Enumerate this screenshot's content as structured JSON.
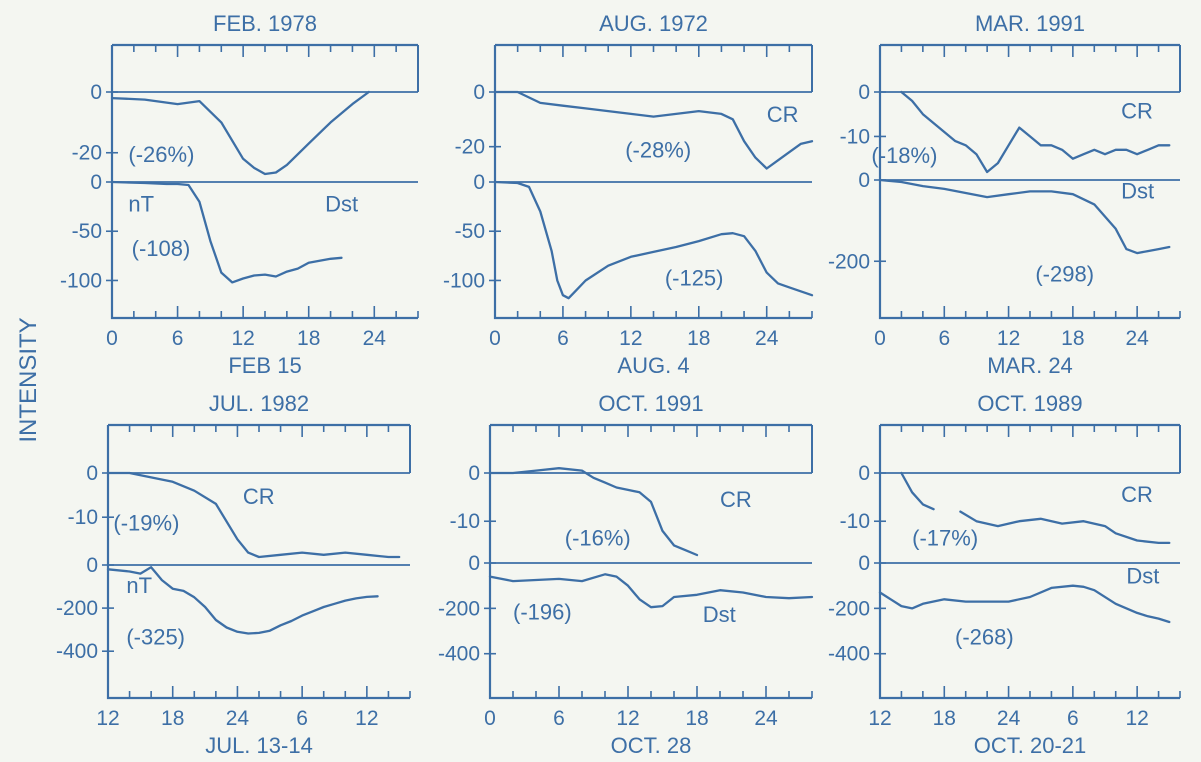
{
  "ylabel": "INTENSITY",
  "colors": {
    "ink": "#3d6fa6",
    "background": "#f4f6f1"
  },
  "chart_data": [
    {
      "type": "line",
      "title": "FEB. 1978",
      "xlabel": "FEB 15",
      "x_ticks": [
        "0",
        "6",
        "12",
        "18",
        "24"
      ],
      "x_tick_values": [
        0,
        6,
        12,
        18,
        24
      ],
      "xlim": [
        0,
        28
      ],
      "cr": {
        "ticks": [
          "0",
          "-20"
        ],
        "tick_values": [
          0,
          -20
        ],
        "ylim": [
          -27,
          20
        ],
        "x": [
          0,
          3,
          6,
          8,
          10,
          12,
          13,
          14,
          15,
          16,
          18,
          20,
          22,
          23.5
        ],
        "values": [
          -2,
          -2.5,
          -4,
          -3,
          -10,
          -22,
          -25,
          -27,
          -26.5,
          -24,
          -17,
          -10,
          -4,
          0
        ]
      },
      "dst": {
        "ticks": [
          "0",
          "-50",
          "-100"
        ],
        "tick_values": [
          0,
          -50,
          -100
        ],
        "ylim": [
          -130,
          0
        ],
        "x": [
          0,
          3,
          5,
          6,
          7,
          8,
          9,
          10,
          11,
          12,
          13,
          14,
          15,
          16,
          17,
          18,
          19,
          20,
          21
        ],
        "values": [
          0,
          -1,
          -2,
          -2,
          -3,
          -20,
          -60,
          -92,
          -102,
          -98,
          -95,
          -94,
          -96,
          -91,
          -88,
          -82,
          -80,
          -78,
          -77
        ]
      },
      "annotations": [
        {
          "text": "(-26%)",
          "row": "cr",
          "x": 1.5,
          "y": -23
        },
        {
          "text": "nT",
          "row": "dst",
          "x": 1.5,
          "y": -30
        },
        {
          "text": "Dst",
          "row": "dst",
          "x": 19.5,
          "y": -30
        },
        {
          "text": "(-108)",
          "row": "dst",
          "x": 1.8,
          "y": -75
        }
      ]
    },
    {
      "type": "line",
      "title": "AUG. 1972",
      "xlabel": "AUG. 4",
      "x_ticks": [
        "0",
        "6",
        "12",
        "18",
        "24"
      ],
      "x_tick_values": [
        0,
        6,
        12,
        18,
        24
      ],
      "xlim": [
        0,
        28
      ],
      "cr": {
        "ticks": [
          "0",
          "-20"
        ],
        "tick_values": [
          0,
          -20
        ],
        "ylim": [
          -30,
          20
        ],
        "x": [
          0,
          2,
          4,
          6,
          8,
          10,
          12,
          14,
          16,
          18,
          20,
          21,
          22,
          23,
          24,
          25,
          26,
          27,
          28
        ],
        "values": [
          0,
          0,
          -4,
          -5,
          -6,
          -7,
          -8,
          -9,
          -8,
          -7,
          -8,
          -10,
          -18,
          -24,
          -28,
          -25,
          -22,
          -19,
          -18
        ]
      },
      "dst": {
        "ticks": [
          "0",
          "-50",
          "-100"
        ],
        "tick_values": [
          0,
          -50,
          -100
        ],
        "ylim": [
          -130,
          0
        ],
        "x": [
          0,
          2,
          3,
          4,
          5,
          5.5,
          6,
          6.5,
          7,
          8,
          10,
          12,
          14,
          16,
          18,
          20,
          21,
          22,
          23,
          24,
          25,
          26,
          27,
          28
        ],
        "values": [
          0,
          -1,
          -5,
          -30,
          -70,
          -100,
          -115,
          -118,
          -112,
          -100,
          -85,
          -76,
          -71,
          -66,
          -60,
          -53,
          -52,
          -55,
          -70,
          -92,
          -103,
          -107,
          -111,
          -115
        ]
      },
      "annotations": [
        {
          "text": "CR",
          "row": "cr",
          "x": 24,
          "y": -11
        },
        {
          "text": "(-28%)",
          "row": "cr",
          "x": 11.5,
          "y": -24
        },
        {
          "text": "(-125)",
          "row": "dst",
          "x": 15,
          "y": -105
        }
      ]
    },
    {
      "type": "line",
      "title": "MAR. 1991",
      "xlabel": "MAR. 24",
      "x_ticks": [
        "0",
        "6",
        "12",
        "18",
        "24"
      ],
      "x_tick_values": [
        0,
        6,
        12,
        18,
        24
      ],
      "xlim": [
        0,
        28
      ],
      "cr": {
        "ticks": [
          "0",
          "-10"
        ],
        "tick_values": [
          0,
          -10
        ],
        "ylim": [
          -18,
          10
        ],
        "x": [
          2,
          3,
          4,
          5,
          6,
          7,
          8,
          9,
          10,
          11,
          12,
          13,
          14,
          15,
          16,
          17,
          18,
          19,
          20,
          21,
          22,
          23,
          24,
          25,
          26,
          27
        ],
        "values": [
          0,
          -2,
          -5,
          -7,
          -9,
          -11,
          -12,
          -14,
          -18,
          -16,
          -12,
          -8,
          -10,
          -12,
          -12,
          -13,
          -15,
          -14,
          -13,
          -14,
          -13,
          -13,
          -14,
          -13,
          -12,
          -12
        ]
      },
      "dst": {
        "ticks": [
          "0",
          "-200"
        ],
        "tick_values": [
          0,
          -200
        ],
        "ylim": [
          -320,
          0
        ],
        "x": [
          0,
          2,
          4,
          6,
          8,
          10,
          12,
          14,
          16,
          18,
          20,
          22,
          23,
          24,
          25,
          26,
          27
        ],
        "values": [
          0,
          -5,
          -15,
          -22,
          -32,
          -42,
          -35,
          -28,
          -28,
          -35,
          -60,
          -120,
          -170,
          -180,
          -175,
          -170,
          -165
        ]
      },
      "annotations": [
        {
          "text": "CR",
          "row": "cr",
          "x": 22.5,
          "y": -6
        },
        {
          "text": "(-18%)",
          "row": "cr",
          "x": -0.8,
          "y": -16
        },
        {
          "text": "Dst",
          "row": "dst",
          "x": 22.5,
          "y": -45
        },
        {
          "text": "(-298)",
          "row": "dst",
          "x": 14.5,
          "y": -250
        }
      ]
    },
    {
      "type": "line",
      "title": "JUL. 1982",
      "xlabel": "JUL. 13-14",
      "x_ticks": [
        "12",
        "18",
        "24",
        "6",
        "12"
      ],
      "x_tick_values": [
        0,
        6,
        12,
        18,
        24
      ],
      "xlim": [
        0,
        28
      ],
      "cr": {
        "ticks": [
          "0",
          "-10"
        ],
        "tick_values": [
          0,
          -10
        ],
        "ylim": [
          -19,
          10
        ],
        "x": [
          0,
          2,
          4,
          6,
          8,
          10,
          12,
          13,
          14,
          16,
          18,
          20,
          22,
          24,
          26,
          27
        ],
        "values": [
          0,
          0,
          -1,
          -2,
          -4,
          -7,
          -15,
          -18,
          -19,
          -18.5,
          -18,
          -18.5,
          -18,
          -18.5,
          -19,
          -19
        ]
      },
      "dst": {
        "ticks": [
          "0",
          "-200",
          "-400"
        ],
        "tick_values": [
          0,
          -200,
          -400
        ],
        "ylim": [
          -580,
          0
        ],
        "x": [
          0,
          2,
          3,
          3.5,
          4,
          4.5,
          5,
          6,
          7,
          8,
          9,
          10,
          11,
          12,
          13,
          14,
          15,
          16,
          17,
          18,
          19,
          20,
          21,
          22,
          23,
          24,
          25
        ],
        "values": [
          -20,
          -30,
          -40,
          -25,
          -10,
          -40,
          -70,
          -110,
          -120,
          -150,
          -195,
          -255,
          -290,
          -310,
          -318,
          -315,
          -305,
          -280,
          -260,
          -235,
          -215,
          -195,
          -180,
          -165,
          -155,
          -148,
          -145
        ]
      },
      "annotations": [
        {
          "text": "CR",
          "row": "cr",
          "x": 12.5,
          "y": -7
        },
        {
          "text": "(-19%)",
          "row": "cr",
          "x": 0.5,
          "y": -13
        },
        {
          "text": "nT",
          "row": "dst",
          "x": 1.7,
          "y": -130
        },
        {
          "text": "(-325)",
          "row": "dst",
          "x": 1.7,
          "y": -370
        }
      ]
    },
    {
      "type": "line",
      "title": "OCT. 1991",
      "xlabel": "OCT. 28",
      "x_ticks": [
        "0",
        "6",
        "12",
        "18",
        "24"
      ],
      "x_tick_values": [
        0,
        6,
        12,
        18,
        24
      ],
      "xlim": [
        0,
        28
      ],
      "cr": {
        "ticks": [
          "0",
          "-10"
        ],
        "tick_values": [
          0,
          -10
        ],
        "ylim": [
          -17,
          10
        ],
        "x": [
          0,
          2,
          4,
          6,
          8,
          9,
          10,
          11,
          12,
          13,
          14,
          15,
          16,
          17,
          18
        ],
        "values": [
          0,
          0,
          0.5,
          1,
          0.5,
          -1,
          -2,
          -3,
          -3.5,
          -4,
          -6,
          -12,
          -15,
          -16,
          -17
        ]
      },
      "dst": {
        "ticks": [
          "0",
          "-200",
          "-400"
        ],
        "tick_values": [
          0,
          -200,
          -400
        ],
        "ylim": [
          -560,
          0
        ],
        "x": [
          0,
          2,
          4,
          6,
          8,
          10,
          11,
          12,
          13,
          14,
          15,
          16,
          18,
          20,
          22,
          24,
          26,
          28
        ],
        "values": [
          -60,
          -80,
          -75,
          -70,
          -80,
          -50,
          -60,
          -100,
          -160,
          -195,
          -190,
          -150,
          -140,
          -120,
          -130,
          -150,
          -155,
          -150
        ]
      },
      "annotations": [
        {
          "text": "CR",
          "row": "cr",
          "x": 20,
          "y": -7
        },
        {
          "text": "(-16%)",
          "row": "cr",
          "x": 6.5,
          "y": -15
        },
        {
          "text": "(-196)",
          "row": "dst",
          "x": 2,
          "y": -250
        },
        {
          "text": "Dst",
          "row": "dst",
          "x": 18.5,
          "y": -260
        }
      ]
    },
    {
      "type": "line",
      "title": "OCT. 1989",
      "xlabel": "OCT. 20-21",
      "x_ticks": [
        "12",
        "18",
        "24",
        "6",
        "12"
      ],
      "x_tick_values": [
        0,
        6,
        12,
        18,
        24
      ],
      "xlim": [
        0,
        28
      ],
      "cr": {
        "ticks": [
          "0",
          "-10"
        ],
        "tick_values": [
          0,
          -10
        ],
        "ylim": [
          -17,
          10
        ],
        "x": [
          2,
          3,
          4,
          5
        ],
        "values": [
          0,
          -4,
          -6.5,
          -7.5
        ],
        "x2": [
          7.5,
          9,
          11,
          13,
          15,
          17,
          19,
          21,
          22,
          24,
          26,
          27
        ],
        "values2": [
          -8,
          -10,
          -11,
          -10,
          -9.5,
          -10.5,
          -10,
          -11,
          -12.5,
          -14,
          -14.5,
          -14.5
        ]
      },
      "dst": {
        "ticks": [
          "0",
          "-200",
          "-400"
        ],
        "tick_values": [
          0,
          -200,
          -400
        ],
        "ylim": [
          -560,
          0
        ],
        "x": [
          0,
          1,
          2,
          3,
          4,
          6,
          8,
          10,
          12,
          14,
          16,
          18,
          19,
          20,
          22,
          24,
          25,
          26,
          27
        ],
        "values": [
          -130,
          -160,
          -190,
          -200,
          -180,
          -160,
          -170,
          -170,
          -170,
          -150,
          -110,
          -100,
          -105,
          -120,
          -180,
          -220,
          -235,
          -245,
          -260
        ]
      },
      "annotations": [
        {
          "text": "CR",
          "row": "cr",
          "x": 22.5,
          "y": -6
        },
        {
          "text": "(-17%)",
          "row": "cr",
          "x": 3,
          "y": -15
        },
        {
          "text": "Dst",
          "row": "dst",
          "x": 23,
          "y": -90
        },
        {
          "text": "(-268)",
          "row": "dst",
          "x": 7,
          "y": -360
        }
      ]
    }
  ]
}
